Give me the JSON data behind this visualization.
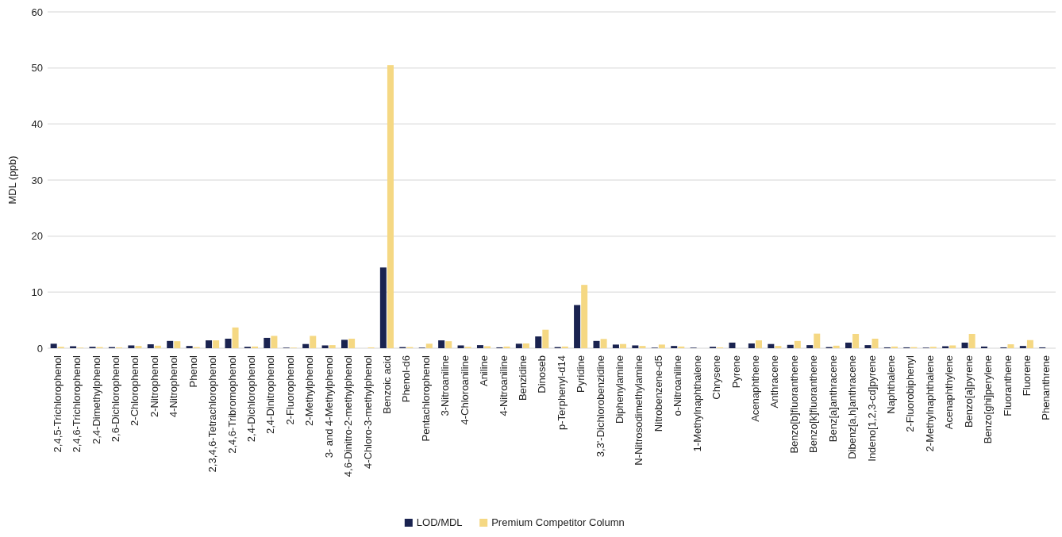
{
  "chart_data": {
    "type": "bar",
    "ylabel": "MDL (ppb)",
    "categories": [
      "2,4,5-Trichlorophenol",
      "2,4,6-Trichlorophenol",
      "2,4-Dimethylphenol",
      "2,6-Dichlorophenol",
      "2-Chlorophenol",
      "2-Nitrophenol",
      "4-Nitrophenol",
      "Phenol",
      "2,3,4,6-Tetrachlorophenol",
      "2,4,6-Tribromophenol",
      "2,4-Dichlorophenol",
      "2,4-Dinitrophenol",
      "2-Fluorophenol",
      "2-Methylphenol",
      "3- and 4-Methylphenol",
      "4,6-Dinitro-2-methylphenol",
      "4-Chloro-3-methylphenol",
      "Benzoic acid",
      "Phenol-d6",
      "Pentachlorophenol",
      "3-Nitroaniline",
      "4-Chloroaniline",
      "Aniline",
      "4-Nitroaniline",
      "Benzidine",
      "Dinoseb",
      "p-Terphenyl-d14",
      "Pyridine",
      "3,3'-Dichlorobenzidine",
      "Diphenylamine",
      "N-Nitrosodimethylamine",
      "Nitrobenzene-d5",
      "o-Nitroaniline",
      "1-Methylnaphthalene",
      "Chrysene",
      "Pyrene",
      "Acenaphthene",
      "Anthracene",
      "Benzo[b]fluoranthene",
      "Benzo[k]fluoranthene",
      "Benz[a]anthracene",
      "Dibenz[a,h]anthracene",
      "Indeno[1,2,3-cd]pyrene",
      "Naphthalene",
      "2-Fluorobiphenyl",
      "2-Methylnaphthalene",
      "Acenaphthylene",
      "Benzo[a]pyrene",
      "Benzo[ghi]perylene",
      "Fluoranthene",
      "Fluorene",
      "Phenanthrene"
    ],
    "series": [
      {
        "name": "LOD/MDL",
        "color": "#1a2350",
        "values": [
          0.8,
          0.35,
          0.25,
          0.2,
          0.5,
          0.7,
          1.3,
          0.4,
          1.4,
          1.7,
          0.25,
          1.85,
          0.1,
          0.75,
          0.5,
          1.5,
          null,
          14.4,
          0.2,
          0.1,
          1.4,
          0.5,
          0.55,
          0.15,
          0.8,
          2.1,
          0.2,
          7.7,
          1.3,
          0.65,
          0.5,
          0.1,
          0.4,
          0.1,
          0.25,
          1.0,
          0.85,
          0.75,
          0.6,
          0.55,
          0.2,
          1.0,
          0.55,
          0.15,
          0.15,
          0.1,
          0.35,
          1.0,
          0.3,
          0.15,
          0.4,
          0.15
        ]
      },
      {
        "name": "Premium Competitor Column",
        "color": "#f5d883",
        "values": [
          0.25,
          0.1,
          0.2,
          0.15,
          0.4,
          0.45,
          1.25,
          0.2,
          1.4,
          3.7,
          0.3,
          2.2,
          0.1,
          2.2,
          0.55,
          1.7,
          0.15,
          50.5,
          0.2,
          0.8,
          1.25,
          0.25,
          0.35,
          0.3,
          0.85,
          3.3,
          0.3,
          11.3,
          1.65,
          0.75,
          0.4,
          0.65,
          0.3,
          null,
          0.15,
          null,
          1.4,
          0.4,
          1.3,
          2.6,
          0.45,
          2.55,
          1.7,
          0.3,
          0.2,
          0.25,
          0.5,
          2.55,
          null,
          0.7,
          1.45,
          null
        ]
      }
    ],
    "ylim": [
      0,
      60
    ],
    "yticks": [
      0,
      10,
      20,
      30,
      40,
      50,
      60
    ],
    "grid": "y",
    "legend": "bottom"
  }
}
